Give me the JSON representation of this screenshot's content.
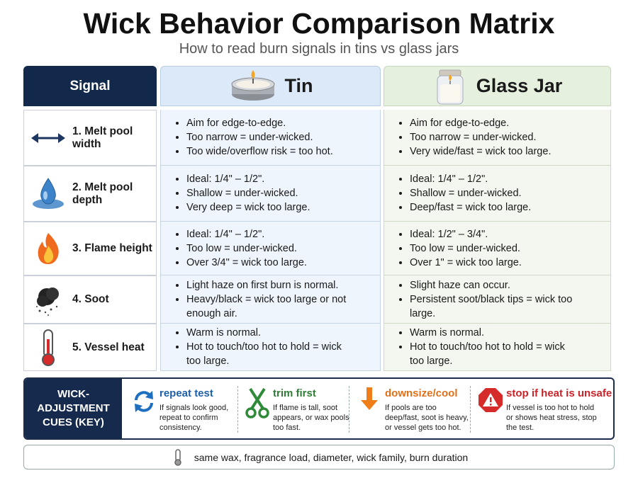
{
  "header": {
    "title": "Wick Behavior Comparison Matrix",
    "subtitle": "How to read burn signals in tins vs glass jars"
  },
  "table": {
    "columns": [
      "Signal",
      "Tin",
      "Glass Jar"
    ],
    "rows": [
      {
        "signal": "1. Melt pool width",
        "tin": [
          "Aim for edge-to-edge.",
          "Too narrow = under-wicked.",
          "Too wide/overflow risk = too hot."
        ],
        "jar": [
          "Aim for edge-to-edge.",
          "Too narrow = under-wicked.",
          "Very wide/fast = wick too large."
        ]
      },
      {
        "signal": "2. Melt pool depth",
        "tin": [
          "Ideal: 1/4\" – 1/2\".",
          "Shallow = under-wicked.",
          "Very deep = wick too large."
        ],
        "jar": [
          "Ideal: 1/4\" – 1/2\".",
          "Shallow = under-wicked.",
          "Deep/fast = wick too large."
        ]
      },
      {
        "signal": "3. Flame height",
        "tin": [
          "Ideal: 1/4\" – 1/2\".",
          "Too low = under-wicked.",
          "Over 3/4\" = wick too large."
        ],
        "jar": [
          "Ideal: 1/2\" – 3/4\".",
          "Too low = under-wicked.",
          "Over 1\" = wick too large."
        ]
      },
      {
        "signal": "4. Soot",
        "tin": [
          "Light haze on first burn is normal.",
          "Heavy/black = wick too large or not enough air."
        ],
        "jar": [
          "Slight haze can occur.",
          "Persistent soot/black tips = wick too large."
        ]
      },
      {
        "signal": "5. Vessel heat",
        "tin": [
          "Warm is normal.",
          "Hot to touch/too hot to hold = wick too large."
        ],
        "jar": [
          "Warm is normal.",
          "Hot to touch/too hot to hold = wick too large."
        ]
      }
    ]
  },
  "key": {
    "title": "WICK-ADJUSTMENT CUES (KEY)",
    "items": [
      {
        "label": "repeat test",
        "text": "If signals look good, repeat to confirm consistency."
      },
      {
        "label": "trim first",
        "text": "If flame is tall, soot appears, or wax pools too fast."
      },
      {
        "label": "downsize/cool",
        "text": "If pools are too deep/fast, soot is heavy, or vessel gets too hot."
      },
      {
        "label": "stop if heat is unsafe",
        "text": "If vessel is too hot to hold or shows heat stress, stop the test."
      }
    ]
  },
  "footer": {
    "text": "same wax, fragrance load, diameter, wick family, burn duration"
  }
}
